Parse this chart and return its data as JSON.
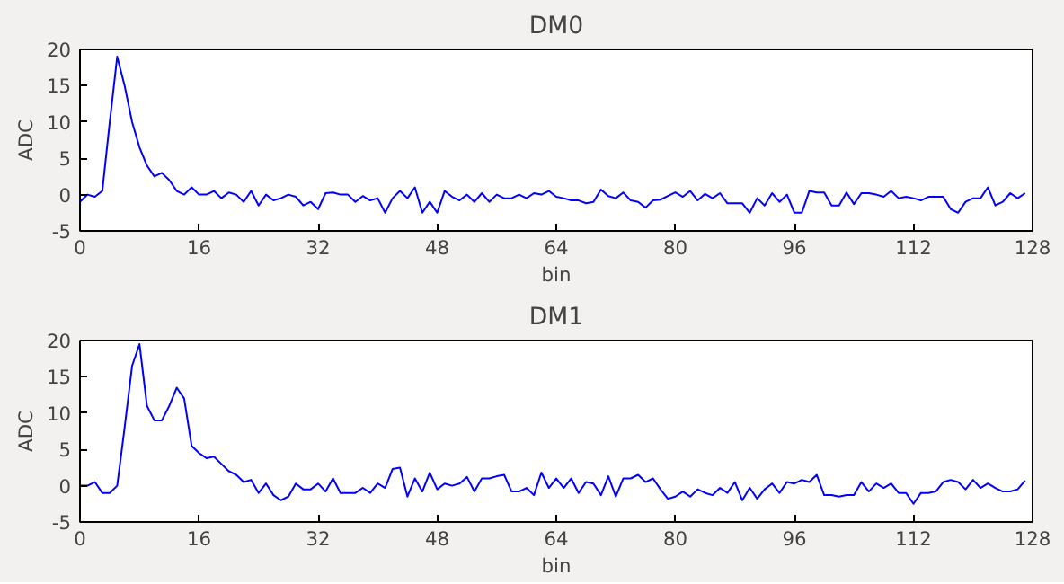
{
  "chart_data": [
    {
      "type": "line",
      "title": "DM0",
      "xlabel": "bin",
      "ylabel": "ADC",
      "xlim": [
        0,
        128
      ],
      "ylim": [
        -5,
        20
      ],
      "xticks": [
        0,
        16,
        32,
        48,
        64,
        80,
        96,
        112,
        128
      ],
      "yticks": [
        -5,
        0,
        5,
        10,
        15,
        20
      ],
      "grid": false,
      "x": [
        0,
        1,
        2,
        3,
        4,
        5,
        6,
        7,
        8,
        9,
        10,
        11,
        12,
        13,
        14,
        15,
        16,
        17,
        18,
        19,
        20,
        21,
        22,
        23,
        24,
        25,
        26,
        27,
        28,
        29,
        30,
        31,
        32,
        33,
        34,
        35,
        36,
        37,
        38,
        39,
        40,
        41,
        42,
        43,
        44,
        45,
        46,
        47,
        48,
        49,
        50,
        51,
        52,
        53,
        54,
        55,
        56,
        57,
        58,
        59,
        60,
        61,
        62,
        63,
        64,
        65,
        66,
        67,
        68,
        69,
        70,
        71,
        72,
        73,
        74,
        75,
        76,
        77,
        78,
        79,
        80,
        81,
        82,
        83,
        84,
        85,
        86,
        87,
        88,
        89,
        90,
        91,
        92,
        93,
        94,
        95,
        96,
        97,
        98,
        99,
        100,
        101,
        102,
        103,
        104,
        105,
        106,
        107,
        108,
        109,
        110,
        111,
        112,
        113,
        114,
        115,
        116,
        117,
        118,
        119,
        120,
        121,
        122,
        123,
        124,
        125,
        126,
        127
      ],
      "series": [
        {
          "color": "#0000ff",
          "values": [
            -1,
            0,
            -0.3,
            0.5,
            10,
            19,
            15,
            10,
            6.5,
            4,
            2.5,
            3,
            2,
            0.5,
            0,
            1,
            0,
            0,
            0.5,
            -0.5,
            0.3,
            0,
            -1,
            0.5,
            -1.5,
            0,
            -0.8,
            -0.5,
            0,
            -0.3,
            -1.5,
            -1,
            -2,
            0.2,
            0.3,
            0,
            0,
            -1,
            -0.2,
            -0.8,
            -0.5,
            -2.5,
            -0.5,
            0.5,
            -0.5,
            1,
            -2.5,
            -1,
            -2.5,
            0.5,
            -0.3,
            -0.8,
            0,
            -1,
            0.2,
            -1,
            0,
            -0.5,
            -0.5,
            0,
            -0.5,
            0.2,
            0,
            0.5,
            -0.3,
            -0.5,
            -0.8,
            -0.8,
            -1.2,
            -1,
            0.7,
            -0.2,
            -0.5,
            0.3,
            -0.8,
            -1,
            -1.8,
            -0.8,
            -0.7,
            -0.2,
            0.3,
            -0.3,
            0.5,
            -0.8,
            0.1,
            -0.5,
            0.2,
            -1.2,
            -1.2,
            -1.2,
            -2.5,
            -0.5,
            -1.5,
            0.2,
            -1,
            0,
            -2.5,
            -2.5,
            0.5,
            0.3,
            0.3,
            -1.5,
            -1.5,
            0.3,
            -1.3,
            0.2,
            0.2,
            0,
            -0.3,
            0.5,
            -0.5,
            -0.3,
            -0.5,
            -0.8,
            -0.3,
            -0.3,
            -0.3,
            -2,
            -2.5,
            -1,
            -0.5,
            -0.5,
            1,
            -1.5,
            -1,
            0.2,
            -0.5,
            0.2
          ]
        }
      ]
    },
    {
      "type": "line",
      "title": "DM1",
      "xlabel": "bin",
      "ylabel": "ADC",
      "xlim": [
        0,
        128
      ],
      "ylim": [
        -5,
        20
      ],
      "xticks": [
        0,
        16,
        32,
        48,
        64,
        80,
        96,
        112,
        128
      ],
      "yticks": [
        -5,
        0,
        5,
        10,
        15,
        20
      ],
      "grid": false,
      "x": [
        0,
        1,
        2,
        3,
        4,
        5,
        6,
        7,
        8,
        9,
        10,
        11,
        12,
        13,
        14,
        15,
        16,
        17,
        18,
        19,
        20,
        21,
        22,
        23,
        24,
        25,
        26,
        27,
        28,
        29,
        30,
        31,
        32,
        33,
        34,
        35,
        36,
        37,
        38,
        39,
        40,
        41,
        42,
        43,
        44,
        45,
        46,
        47,
        48,
        49,
        50,
        51,
        52,
        53,
        54,
        55,
        56,
        57,
        58,
        59,
        60,
        61,
        62,
        63,
        64,
        65,
        66,
        67,
        68,
        69,
        70,
        71,
        72,
        73,
        74,
        75,
        76,
        77,
        78,
        79,
        80,
        81,
        82,
        83,
        84,
        85,
        86,
        87,
        88,
        89,
        90,
        91,
        92,
        93,
        94,
        95,
        96,
        97,
        98,
        99,
        100,
        101,
        102,
        103,
        104,
        105,
        106,
        107,
        108,
        109,
        110,
        111,
        112,
        113,
        114,
        115,
        116,
        117,
        118,
        119,
        120,
        121,
        122,
        123,
        124,
        125,
        126,
        127
      ],
      "series": [
        {
          "color": "#0000ff",
          "values": [
            0,
            0,
            0.5,
            -1,
            -1,
            0,
            8,
            16.5,
            19.5,
            11,
            9,
            9,
            11,
            13.5,
            12,
            5.5,
            4.5,
            3.8,
            4,
            3,
            2,
            1.5,
            0.5,
            0.8,
            -1,
            0.3,
            -1.3,
            -2,
            -1.5,
            0.3,
            -0.5,
            -0.5,
            0.3,
            -0.8,
            1,
            -1,
            -1,
            -1,
            -0.3,
            -1,
            0.3,
            -0.3,
            2.3,
            2.5,
            -1.5,
            1,
            -0.8,
            1.8,
            -0.5,
            0.3,
            0,
            0.3,
            1.2,
            -0.8,
            1,
            1,
            1.3,
            1.5,
            -0.8,
            -0.8,
            -0.3,
            -1.3,
            1.8,
            -0.3,
            1,
            -0.3,
            1,
            -1,
            0.5,
            0.3,
            -1.3,
            1.3,
            -1.5,
            1,
            1,
            1.5,
            0.5,
            1,
            -0.5,
            -1.8,
            -1.5,
            -0.8,
            -1.5,
            -0.5,
            -1,
            -1.3,
            -0.3,
            -1,
            0.5,
            -2,
            -0.3,
            -1.8,
            -0.5,
            0.3,
            -1,
            0.5,
            0.3,
            0.8,
            0.5,
            1.5,
            -1.3,
            -1.3,
            -1.5,
            -1.3,
            -1.3,
            0.5,
            -0.8,
            0.3,
            -0.3,
            0.3,
            -1,
            -1,
            -2.5,
            -1,
            -1,
            -0.8,
            0.5,
            0.8,
            0.5,
            -0.5,
            0.8,
            -0.3,
            0.3,
            -0.3,
            -0.8,
            -0.8,
            -0.5,
            0.7
          ]
        }
      ]
    }
  ]
}
